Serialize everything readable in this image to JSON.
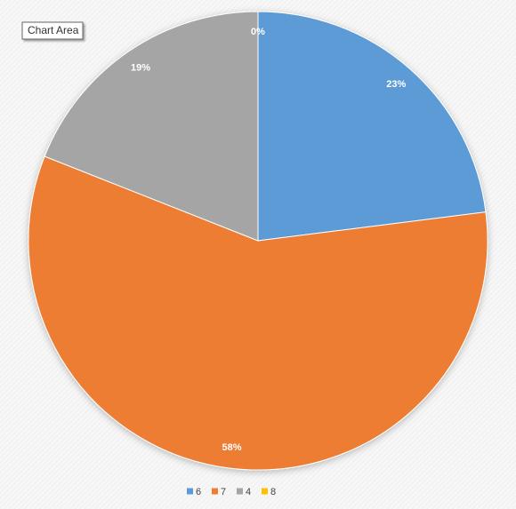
{
  "chart_data": {
    "type": "pie",
    "tooltip": "Chart Area",
    "categories": [
      "6",
      "7",
      "4",
      "8"
    ],
    "values": [
      23,
      58,
      19,
      0
    ],
    "value_labels": [
      "23%",
      "58%",
      "19%",
      "0%"
    ],
    "colors": [
      "#5b9bd5",
      "#ed7d31",
      "#a5a5a5",
      "#ffc000"
    ],
    "legend": "bottom"
  }
}
